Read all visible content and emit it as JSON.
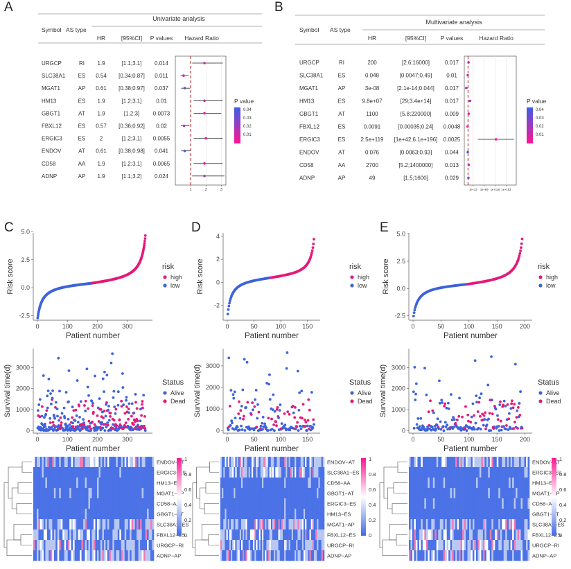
{
  "figure": {
    "panel_labels": [
      "A",
      "B",
      "C",
      "D",
      "E"
    ]
  },
  "forest_common": {
    "title_uni": "Univariate analysis",
    "title_multi": "Multivariate analysis",
    "col_symbol": "Symbol",
    "col_astype": "AS type",
    "col_hr": "HR",
    "col_ci": "[95%CI]",
    "col_p": "P values",
    "col_hazard": "Hazard Ratio",
    "legend_title": "P value",
    "legend_ticks": [
      "0.04",
      "0.03",
      "0.02",
      "0.01"
    ],
    "colors": {
      "low_p": "#ff1493",
      "high_p": "#3c5fe6",
      "refline": "#c0262d"
    }
  },
  "forest_uni": {
    "axis_ticks": [
      "1",
      "2",
      "3"
    ],
    "rows": [
      {
        "symbol": "URGCP",
        "type": "RI",
        "hr": "1.9",
        "ci": "[1.1;3.1]",
        "p": "0.014",
        "hr_v": 1.9,
        "lo": 1.1,
        "hi": 3.1,
        "p_v": 0.014
      },
      {
        "symbol": "SLC38A1",
        "type": "ES",
        "hr": "0.54",
        "ci": "[0.34;0.87]",
        "p": "0.011",
        "hr_v": 0.54,
        "lo": 0.34,
        "hi": 0.87,
        "p_v": 0.011
      },
      {
        "symbol": "MGAT1",
        "type": "AP",
        "hr": "0.61",
        "ci": "[0.38;0.97]",
        "p": "0.037",
        "hr_v": 0.61,
        "lo": 0.38,
        "hi": 0.97,
        "p_v": 0.037
      },
      {
        "symbol": "HM13",
        "type": "ES",
        "hr": "1.9",
        "ci": "[1.2;3.1]",
        "p": "0.01",
        "hr_v": 1.9,
        "lo": 1.2,
        "hi": 3.1,
        "p_v": 0.01
      },
      {
        "symbol": "GBGT1",
        "type": "AT",
        "hr": "1.9",
        "ci": "[1.2;3]",
        "p": "0.0073",
        "hr_v": 1.9,
        "lo": 1.2,
        "hi": 3.0,
        "p_v": 0.0073
      },
      {
        "symbol": "FBXL12",
        "type": "ES",
        "hr": "0.57",
        "ci": "[0.36;0.92]",
        "p": "0.02",
        "hr_v": 0.57,
        "lo": 0.36,
        "hi": 0.92,
        "p_v": 0.02
      },
      {
        "symbol": "ERGIC3",
        "type": "ES",
        "hr": "2",
        "ci": "[1.2;3.1]",
        "p": "0.0055",
        "hr_v": 2.0,
        "lo": 1.2,
        "hi": 3.1,
        "p_v": 0.0055
      },
      {
        "symbol": "ENDOV",
        "type": "AT",
        "hr": "0.61",
        "ci": "[0.38;0.98]",
        "p": "0.041",
        "hr_v": 0.61,
        "lo": 0.38,
        "hi": 0.98,
        "p_v": 0.041
      },
      {
        "symbol": "CD58",
        "type": "AA",
        "hr": "1.9",
        "ci": "[1.2;3.1]",
        "p": "0.0065",
        "hr_v": 1.9,
        "lo": 1.2,
        "hi": 3.1,
        "p_v": 0.0065
      },
      {
        "symbol": "ADNP",
        "type": "AP",
        "hr": "1.9",
        "ci": "[1.1;3.2]",
        "p": "0.024",
        "hr_v": 1.9,
        "lo": 1.1,
        "hi": 3.2,
        "p_v": 0.024
      }
    ]
  },
  "forest_multi": {
    "axis_ticks": [
      "1e+22",
      "1e+69",
      "1e+116",
      "1e+163"
    ],
    "rows": [
      {
        "symbol": "URGCP",
        "type": "RI",
        "hr": "200",
        "ci": "[2.6;16000]",
        "p": "0.017",
        "l_hr": 2.3,
        "l_lo": 0.41,
        "l_hi": 4.2,
        "p_v": 0.017
      },
      {
        "symbol": "SLC38A1",
        "type": "ES",
        "hr": "0.048",
        "ci": "[0.0047;0.49]",
        "p": "0.01",
        "l_hr": -1.3,
        "l_lo": -2.3,
        "l_hi": -0.31,
        "p_v": 0.01
      },
      {
        "symbol": "MGAT1",
        "type": "AP",
        "hr": "3e-08",
        "ci": "[2.1e-14;0.044]",
        "p": "0.017",
        "l_hr": -7.5,
        "l_lo": -13.7,
        "l_hi": -1.36,
        "p_v": 0.017
      },
      {
        "symbol": "HM13",
        "type": "ES",
        "hr": "9.8e+07",
        "ci": "[29;3.4e+14]",
        "p": "0.017",
        "l_hr": 8.0,
        "l_lo": 1.46,
        "l_hi": 14.5,
        "p_v": 0.017
      },
      {
        "symbol": "GBGT1",
        "type": "AT",
        "hr": "1100",
        "ci": "[5.8;220000]",
        "p": "0.009",
        "l_hr": 3.04,
        "l_lo": 0.76,
        "l_hi": 5.34,
        "p_v": 0.009
      },
      {
        "symbol": "FBXL12",
        "type": "ES",
        "hr": "0.0091",
        "ci": "[0.00035;0.24]",
        "p": "0.0048",
        "l_hr": -2.04,
        "l_lo": -3.46,
        "l_hi": -0.62,
        "p_v": 0.0048
      },
      {
        "symbol": "ERGIC3",
        "type": "ES",
        "hr": "2.5e+119",
        "ci": "[1e+42;6.1e+196]",
        "p": "0.0025",
        "l_hr": 119.4,
        "l_lo": 42,
        "l_hi": 196.8,
        "p_v": 0.0025
      },
      {
        "symbol": "ENDOV",
        "type": "AT",
        "hr": "0.076",
        "ci": "[0.0063;0.93]",
        "p": "0.044",
        "l_hr": -1.12,
        "l_lo": -2.2,
        "l_hi": -0.03,
        "p_v": 0.044
      },
      {
        "symbol": "CD58",
        "type": "AA",
        "hr": "2700",
        "ci": "[5.2;1400000]",
        "p": "0.013",
        "l_hr": 3.43,
        "l_lo": 0.72,
        "l_hi": 6.15,
        "p_v": 0.013
      },
      {
        "symbol": "ADNP",
        "type": "AP",
        "hr": "49",
        "ci": "[1.5;1600]",
        "p": "0.029",
        "l_hr": 1.69,
        "l_lo": 0.18,
        "l_hi": 3.2,
        "p_v": 0.029
      }
    ]
  },
  "risk_common": {
    "risk_ylabel": "Risk score",
    "xlabel": "Patient number",
    "risk_legend_title": "risk",
    "risk_levels": [
      "high",
      "low"
    ],
    "surv_ylabel": "Survival time(d)",
    "status_legend_title": "Status",
    "status_levels": [
      "Alive",
      "Dead"
    ],
    "colors": {
      "high": "#e6197a",
      "low": "#3d63dc",
      "alive": "#3d63dc",
      "dead": "#e6197a"
    }
  },
  "chart_data": [
    {
      "panel": "C",
      "type": "scatter",
      "n": 360,
      "cutoff": 180,
      "x_ticks": [
        "0",
        "100",
        "200",
        "300"
      ],
      "x_tick_values": [
        0,
        100,
        200,
        300
      ],
      "risk_ylim": [
        -2.9,
        4.9
      ],
      "risk_ticks": [
        "5.0",
        "2.5",
        "0.0",
        "-2.5"
      ],
      "risk_tick_values": [
        5.0,
        2.5,
        0.0,
        -2.5
      ],
      "risk_min": -2.8,
      "risk_max": 4.8,
      "surv_ylim": [
        -120,
        3900
      ],
      "surv_ticks": [
        "3000",
        "2000",
        "1000",
        "0"
      ],
      "surv_tick_values": [
        3000,
        2000,
        1000,
        0
      ],
      "dead_fraction": 0.3,
      "seed": 11
    },
    {
      "panel": "D",
      "type": "scatter",
      "n": 162,
      "cutoff": 81,
      "x_ticks": [
        "0",
        "50",
        "100",
        "150"
      ],
      "x_tick_values": [
        0,
        50,
        100,
        150
      ],
      "risk_ylim": [
        -3.3,
        4.3
      ],
      "risk_ticks": [
        "4",
        "2",
        "0",
        "-2"
      ],
      "risk_tick_values": [
        4,
        2,
        0,
        -2
      ],
      "risk_min": -3.0,
      "risk_max": 4.0,
      "surv_ylim": [
        -120,
        3800
      ],
      "surv_ticks": [
        "3000",
        "2000",
        "1000",
        "0"
      ],
      "surv_tick_values": [
        3000,
        2000,
        1000,
        0
      ],
      "dead_fraction": 0.22,
      "seed": 23
    },
    {
      "panel": "E",
      "type": "scatter",
      "n": 195,
      "cutoff": 97,
      "x_ticks": [
        "0",
        "50",
        "100",
        "150",
        "200"
      ],
      "x_tick_values": [
        0,
        50,
        100,
        150,
        200
      ],
      "risk_ylim": [
        -2.9,
        5.1
      ],
      "risk_ticks": [
        "5.0",
        "2.5",
        "0.0",
        "-2.5"
      ],
      "risk_tick_values": [
        5.0,
        2.5,
        0.0,
        -2.5
      ],
      "risk_min": -2.7,
      "risk_max": 4.8,
      "surv_ylim": [
        -120,
        3900
      ],
      "surv_ticks": [
        "3000",
        "2000",
        "1000",
        "0"
      ],
      "surv_tick_values": [
        3000,
        2000,
        1000,
        0
      ],
      "dead_fraction": 0.3,
      "seed": 37
    }
  ],
  "heatmaps": [
    {
      "panel": "C",
      "rows": [
        "ENDOV−AT",
        "ERGIC3−ES",
        "HM13−ES",
        "MGAT1−AP",
        "CD58−AA",
        "GBGT1−AT",
        "SLC38A1−ES",
        "FBXL12−ES",
        "URGCP−RI",
        "ADNP−AP"
      ]
    },
    {
      "panel": "D",
      "rows": [
        "ENDOV−AT",
        "SLC38A1−ES",
        "CD58−AA",
        "GBGT1−AT",
        "ERGIC3−ES",
        "HM13−ES",
        "MGAT1−AP",
        "FBXL12−ES",
        "URGCP−RI",
        "ADNP−AP"
      ]
    },
    {
      "panel": "E",
      "rows": [
        "ENDOV−AT",
        "ERGIC3−ES",
        "HM13−ES",
        "MGAT1−AP",
        "CD58−AA",
        "GBGT1−AT",
        "SLC38A1−ES",
        "FBXL12−ES",
        "URGCP−RI",
        "ADNP−AP"
      ]
    }
  ],
  "heatmap_legend": {
    "ticks": [
      "1",
      "0.8",
      "0.6",
      "0.4",
      "0.2",
      "0"
    ],
    "colors": [
      "#4169e1",
      "#ffffff",
      "#ff1493"
    ]
  }
}
